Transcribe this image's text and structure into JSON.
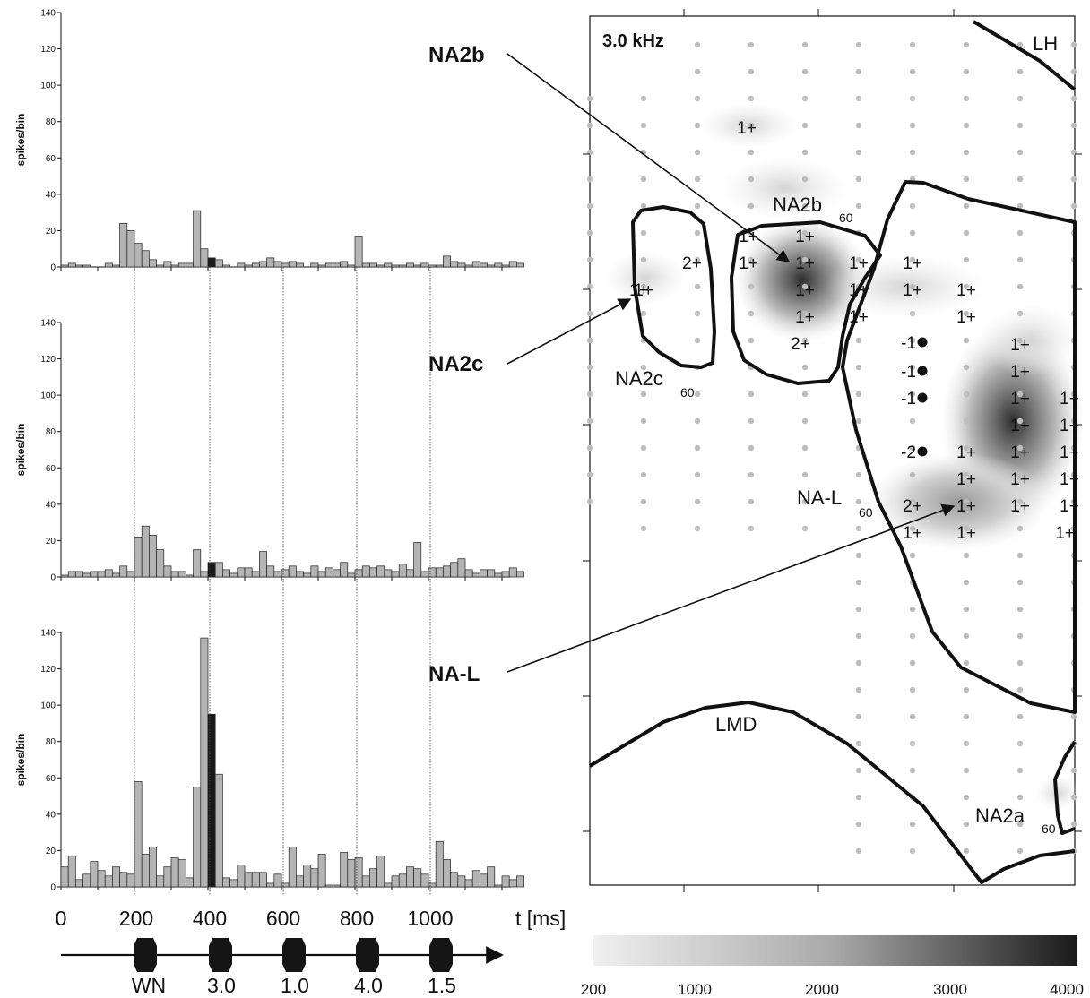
{
  "chart_data": [
    {
      "type": "bar",
      "panel": "top",
      "ylabel": "spikes/bin",
      "ylim": [
        0,
        140
      ],
      "y_ticks": [
        "0",
        "20",
        "40",
        "60",
        "80",
        "100",
        "120",
        "140"
      ],
      "bin_ms": 20,
      "highlight_bin_start_ms": 400,
      "values": [
        1,
        2,
        1,
        1,
        0,
        0,
        2,
        1,
        24,
        20,
        13,
        9,
        4,
        1,
        3,
        1,
        2,
        2,
        31,
        10,
        5,
        4,
        1,
        0,
        2,
        1,
        2,
        3,
        5,
        3,
        2,
        3,
        2,
        0,
        2,
        1,
        2,
        2,
        3,
        1,
        17,
        2,
        2,
        1,
        2,
        1,
        1,
        2,
        1,
        2,
        1,
        1,
        6,
        3,
        2,
        1,
        3,
        2,
        1,
        2,
        1,
        3,
        2
      ]
    },
    {
      "type": "bar",
      "panel": "middle",
      "ylabel": "spikes/bin",
      "ylim": [
        0,
        140
      ],
      "y_ticks": [
        "0",
        "20",
        "40",
        "60",
        "80",
        "100",
        "120",
        "140"
      ],
      "bin_ms": 20,
      "highlight_bin_start_ms": 400,
      "values": [
        1,
        3,
        3,
        2,
        3,
        3,
        4,
        2,
        6,
        3,
        22,
        28,
        23,
        15,
        6,
        3,
        3,
        1,
        15,
        3,
        8,
        8,
        4,
        2,
        5,
        5,
        3,
        14,
        6,
        3,
        4,
        6,
        3,
        2,
        6,
        3,
        5,
        4,
        8,
        2,
        4,
        6,
        5,
        6,
        4,
        3,
        7,
        4,
        19,
        3,
        5,
        5,
        6,
        8,
        10,
        4,
        2,
        4,
        4,
        2,
        3,
        5,
        3
      ]
    },
    {
      "type": "bar",
      "panel": "bottom",
      "ylabel": "spikes/bin",
      "ylim": [
        0,
        140
      ],
      "y_ticks": [
        "0",
        "20",
        "40",
        "60",
        "80",
        "100",
        "120",
        "140"
      ],
      "xlabel": "t [ms]",
      "x_ticks": [
        "0",
        "200",
        "400",
        "600",
        "800",
        "1000"
      ],
      "bin_ms": 20,
      "highlight_bin_start_ms": 400,
      "values": [
        11,
        17,
        4,
        7,
        14,
        9,
        6,
        11,
        8,
        7,
        58,
        18,
        22,
        6,
        11,
        16,
        15,
        5,
        55,
        137,
        95,
        62,
        5,
        4,
        12,
        8,
        8,
        8,
        2,
        7,
        2,
        22,
        6,
        12,
        10,
        18,
        1,
        1,
        19,
        15,
        16,
        6,
        10,
        17,
        2,
        6,
        7,
        11,
        10,
        7,
        2,
        25,
        15,
        8,
        6,
        4,
        9,
        7,
        11,
        1,
        6,
        4,
        6
      ]
    },
    {
      "type": "heatmap",
      "panel": "map",
      "title": "3.0 kHz",
      "colorbar_ticks": [
        "200",
        "1000",
        "2000",
        "3000",
        "4000"
      ],
      "colorbar_range": [
        200,
        4000
      ],
      "regions": [
        "LH",
        "NA2b",
        "NA2c",
        "NA-L",
        "LMD",
        "NA2a"
      ]
    }
  ],
  "labels": {
    "ylabel": "spikes/bin",
    "xlabel": "t [ms]",
    "map_title": "3.0 kHz",
    "callout_na2b": "NA2b",
    "callout_na2c": "NA2c",
    "callout_nal": "NA-L",
    "region_lh": "LH",
    "region_lmd": "LMD",
    "region_na2b": "NA2b",
    "region_na2c": "NA2c",
    "region_nal": "NA-L",
    "region_na2a": "NA2a",
    "sub_60": "60"
  },
  "stimulus": [
    "WN",
    "3.0",
    "1.0",
    "4.0",
    "1.5"
  ],
  "sites": [
    {
      "t": "1+",
      "dot": false
    },
    {
      "t": "2+",
      "dot": false
    },
    {
      "t": "1+",
      "dot": false
    },
    {
      "t": "1+",
      "dot": false
    },
    {
      "t": "1+",
      "dot": false
    },
    {
      "t": "1+",
      "dot": false
    },
    {
      "t": "1+",
      "dot": false
    },
    {
      "t": "1+",
      "dot": false
    },
    {
      "t": "1+",
      "dot": false
    },
    {
      "t": "1+",
      "dot": false
    },
    {
      "t": "1+",
      "dot": false
    },
    {
      "t": "1+",
      "dot": false
    },
    {
      "t": "1+",
      "dot": false
    },
    {
      "t": "1+",
      "dot": false
    },
    {
      "t": "1+",
      "dot": false
    },
    {
      "t": "1+",
      "dot": false
    },
    {
      "t": "1+",
      "dot": false
    },
    {
      "t": "2+",
      "dot": false
    },
    {
      "t": "-1",
      "dot": true
    },
    {
      "t": "-1",
      "dot": true
    },
    {
      "t": "-1",
      "dot": true
    },
    {
      "t": "-2",
      "dot": true
    },
    {
      "t": "1+",
      "dot": false
    },
    {
      "t": "1+",
      "dot": false
    },
    {
      "t": "1+",
      "dot": false
    },
    {
      "t": "1+",
      "dot": false
    },
    {
      "t": "1+",
      "dot": false
    },
    {
      "t": "1+",
      "dot": false
    },
    {
      "t": "1+",
      "dot": false
    },
    {
      "t": "1+",
      "dot": false
    },
    {
      "t": "1+",
      "dot": false
    },
    {
      "t": "1+",
      "dot": false
    },
    {
      "t": "1+",
      "dot": false
    },
    {
      "t": "1+",
      "dot": false
    },
    {
      "t": "2+",
      "dot": false
    },
    {
      "t": "1+",
      "dot": false
    },
    {
      "t": "1+",
      "dot": false
    },
    {
      "t": "1+",
      "dot": false
    },
    {
      "t": "1+",
      "dot": false
    },
    {
      "t": "1+",
      "dot": false
    },
    {
      "t": "1+",
      "dot": false
    },
    {
      "t": "2+",
      "dot": false
    },
    {
      "t": "1+",
      "dot": false
    },
    {
      "t": "1+",
      "dot": false
    }
  ]
}
